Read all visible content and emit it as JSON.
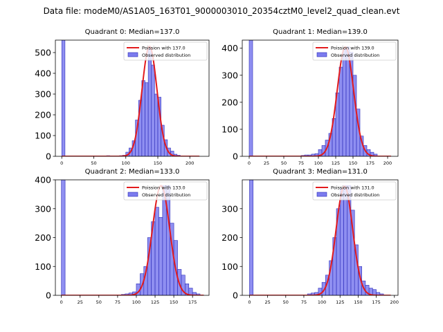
{
  "figure_title": "Data file: modeM0/AS1A05_163T01_9000003010_20354cztM0_level2_quad_clean.evt",
  "colors": {
    "bar_fill": "#7b7bee",
    "bar_edge": "#2b2bb8",
    "fit_line": "#e31a1c",
    "axes": "#000000"
  },
  "chart_data": [
    {
      "type": "bar",
      "title": "Quadrant 0: Median=137.0",
      "xlim": [
        -10,
        230
      ],
      "ylim": [
        0,
        560
      ],
      "xticks": [
        0,
        50,
        100,
        150,
        200
      ],
      "yticks": [
        0,
        100,
        200,
        300,
        400,
        500
      ],
      "bin_width": 5,
      "bins": [
        {
          "x": 0,
          "y": 560
        },
        {
          "x": 70,
          "y": 3
        },
        {
          "x": 80,
          "y": 2
        },
        {
          "x": 85,
          "y": 2
        },
        {
          "x": 90,
          "y": 3
        },
        {
          "x": 95,
          "y": 5
        },
        {
          "x": 100,
          "y": 20
        },
        {
          "x": 105,
          "y": 40
        },
        {
          "x": 110,
          "y": 75
        },
        {
          "x": 115,
          "y": 175
        },
        {
          "x": 120,
          "y": 270
        },
        {
          "x": 125,
          "y": 365
        },
        {
          "x": 130,
          "y": 355
        },
        {
          "x": 135,
          "y": 525
        },
        {
          "x": 140,
          "y": 440
        },
        {
          "x": 145,
          "y": 300
        },
        {
          "x": 150,
          "y": 285
        },
        {
          "x": 155,
          "y": 150
        },
        {
          "x": 160,
          "y": 80
        },
        {
          "x": 165,
          "y": 40
        },
        {
          "x": 170,
          "y": 25
        },
        {
          "x": 175,
          "y": 10
        },
        {
          "x": 180,
          "y": 5
        },
        {
          "x": 185,
          "y": 2
        }
      ],
      "poisson_mean": 137.0,
      "poisson_peak": 530,
      "fit_range": [
        0,
        215
      ],
      "legend": [
        "Poission with 137.0",
        "Observed distribution"
      ]
    },
    {
      "type": "bar",
      "title": "Quadrant 1: Median=139.0",
      "xlim": [
        -10,
        215
      ],
      "ylim": [
        0,
        430
      ],
      "xticks": [
        0,
        25,
        50,
        75,
        100,
        125,
        150,
        175,
        200
      ],
      "yticks": [
        0,
        100,
        200,
        300,
        400
      ],
      "bin_width": 5,
      "bins": [
        {
          "x": 0,
          "y": 430
        },
        {
          "x": 75,
          "y": 3
        },
        {
          "x": 80,
          "y": 5
        },
        {
          "x": 85,
          "y": 5
        },
        {
          "x": 90,
          "y": 8
        },
        {
          "x": 95,
          "y": 10
        },
        {
          "x": 100,
          "y": 25
        },
        {
          "x": 105,
          "y": 40
        },
        {
          "x": 110,
          "y": 60
        },
        {
          "x": 115,
          "y": 85
        },
        {
          "x": 120,
          "y": 140
        },
        {
          "x": 125,
          "y": 235
        },
        {
          "x": 130,
          "y": 330
        },
        {
          "x": 135,
          "y": 395
        },
        {
          "x": 140,
          "y": 405
        },
        {
          "x": 145,
          "y": 385
        },
        {
          "x": 150,
          "y": 300
        },
        {
          "x": 155,
          "y": 175
        },
        {
          "x": 160,
          "y": 75
        },
        {
          "x": 165,
          "y": 40
        },
        {
          "x": 170,
          "y": 25
        },
        {
          "x": 175,
          "y": 15
        },
        {
          "x": 180,
          "y": 8
        }
      ],
      "poisson_mean": 139.0,
      "poisson_peak": 405,
      "fit_range": [
        0,
        205
      ],
      "legend": [
        "Poission with 139.0",
        "Observed distribution"
      ]
    },
    {
      "type": "bar",
      "title": "Quadrant 2: Median=133.0",
      "xlim": [
        -8,
        197
      ],
      "ylim": [
        0,
        400
      ],
      "xticks": [
        0,
        25,
        50,
        75,
        100,
        125,
        150,
        175
      ],
      "yticks": [
        0,
        100,
        200,
        300,
        400
      ],
      "bin_width": 5,
      "bins": [
        {
          "x": 0,
          "y": 400
        },
        {
          "x": 80,
          "y": 3
        },
        {
          "x": 85,
          "y": 5
        },
        {
          "x": 90,
          "y": 8
        },
        {
          "x": 95,
          "y": 12
        },
        {
          "x": 100,
          "y": 40
        },
        {
          "x": 105,
          "y": 75
        },
        {
          "x": 110,
          "y": 100
        },
        {
          "x": 115,
          "y": 200
        },
        {
          "x": 120,
          "y": 255
        },
        {
          "x": 125,
          "y": 305
        },
        {
          "x": 130,
          "y": 270
        },
        {
          "x": 135,
          "y": 380
        },
        {
          "x": 140,
          "y": 380
        },
        {
          "x": 145,
          "y": 250
        },
        {
          "x": 150,
          "y": 190
        },
        {
          "x": 155,
          "y": 90
        },
        {
          "x": 160,
          "y": 70
        },
        {
          "x": 165,
          "y": 40
        },
        {
          "x": 170,
          "y": 25
        },
        {
          "x": 175,
          "y": 10
        },
        {
          "x": 180,
          "y": 5
        }
      ],
      "poisson_mean": 133.0,
      "poisson_peak": 380,
      "fit_range": [
        0,
        190
      ],
      "legend": [
        "Poission with 133.0",
        "Observed distribution"
      ]
    },
    {
      "type": "bar",
      "title": "Quadrant 3: Median=131.0",
      "xlim": [
        -10,
        205
      ],
      "ylim": [
        0,
        400
      ],
      "xticks": [
        0,
        25,
        50,
        75,
        100,
        125,
        150,
        175,
        200
      ],
      "yticks": [
        0,
        100,
        200,
        300
      ],
      "bin_width": 5,
      "bins": [
        {
          "x": 0,
          "y": 400
        },
        {
          "x": 80,
          "y": 5
        },
        {
          "x": 85,
          "y": 8
        },
        {
          "x": 90,
          "y": 10
        },
        {
          "x": 95,
          "y": 25
        },
        {
          "x": 100,
          "y": 45
        },
        {
          "x": 105,
          "y": 70
        },
        {
          "x": 110,
          "y": 120
        },
        {
          "x": 115,
          "y": 200
        },
        {
          "x": 120,
          "y": 300
        },
        {
          "x": 125,
          "y": 370
        },
        {
          "x": 130,
          "y": 380
        },
        {
          "x": 135,
          "y": 380
        },
        {
          "x": 140,
          "y": 295
        },
        {
          "x": 145,
          "y": 175
        },
        {
          "x": 150,
          "y": 100
        },
        {
          "x": 155,
          "y": 50
        },
        {
          "x": 160,
          "y": 35
        },
        {
          "x": 165,
          "y": 25
        },
        {
          "x": 170,
          "y": 20
        },
        {
          "x": 175,
          "y": 10
        },
        {
          "x": 180,
          "y": 5
        }
      ],
      "poisson_mean": 131.0,
      "poisson_peak": 378,
      "fit_range": [
        0,
        195
      ],
      "legend": [
        "Poission with 131.0",
        "Observed distribution"
      ]
    }
  ]
}
